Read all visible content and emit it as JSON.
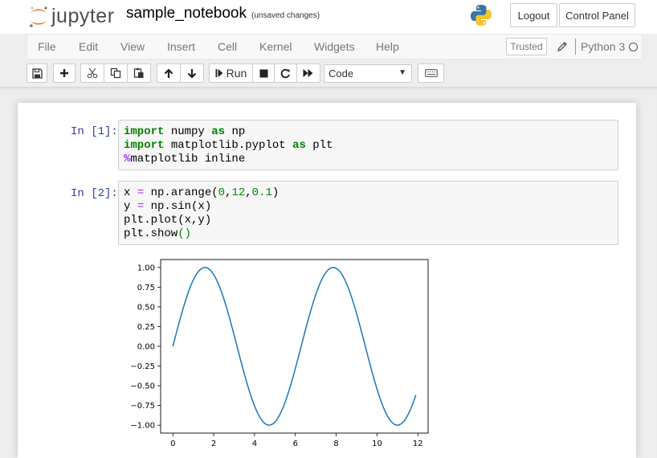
{
  "header": {
    "logo_text": "jupyter",
    "notebook_name": "sample_notebook",
    "save_status": "(unsaved changes)",
    "logout_label": "Logout",
    "control_panel_label": "Control Panel"
  },
  "menubar": {
    "items": [
      "File",
      "Edit",
      "View",
      "Insert",
      "Cell",
      "Kernel",
      "Widgets",
      "Help"
    ],
    "trusted_label": "Trusted",
    "kernel_name": "Python 3"
  },
  "toolbar": {
    "run_label": "Run",
    "cell_type": "Code",
    "icons": [
      "save-icon",
      "plus-icon",
      "cut-icon",
      "copy-icon",
      "paste-icon",
      "arrow-up-icon",
      "arrow-down-icon",
      "step-forward-icon",
      "stop-icon",
      "restart-icon",
      "fast-forward-icon",
      "keyboard-icon"
    ]
  },
  "cells": [
    {
      "prompt": "In [1]:",
      "lines": [
        [
          [
            "kw",
            "import"
          ],
          [
            "t",
            " numpy "
          ],
          [
            "kw",
            "as"
          ],
          [
            "t",
            " np"
          ]
        ],
        [
          [
            "kw",
            "import"
          ],
          [
            "t",
            " matplotlib.pyplot "
          ],
          [
            "kw",
            "as"
          ],
          [
            "t",
            " plt"
          ]
        ],
        [
          [
            "mg",
            "%"
          ],
          [
            "t",
            "matplotlib inline"
          ]
        ]
      ]
    },
    {
      "prompt": "In [2]:",
      "lines": [
        [
          [
            "t",
            "x "
          ],
          [
            "op",
            "="
          ],
          [
            "t",
            " np.arange("
          ],
          [
            "num",
            "0"
          ],
          [
            "t",
            ","
          ],
          [
            "num",
            "12"
          ],
          [
            "t",
            ","
          ],
          [
            "num",
            "0.1"
          ],
          [
            "t",
            ")"
          ]
        ],
        [
          [
            "t",
            "y "
          ],
          [
            "op",
            "="
          ],
          [
            "t",
            " np.sin(x)"
          ]
        ],
        [
          [
            "t",
            "plt.plot(x,y)"
          ]
        ],
        [
          [
            "t",
            "plt.show"
          ],
          [
            "paren",
            "()"
          ]
        ]
      ]
    }
  ],
  "chart_data": {
    "type": "line",
    "function": "sin",
    "x_start": 0,
    "x_stop": 12,
    "x_step": 0.1,
    "xlim": [
      -0.6,
      12.5
    ],
    "ylim": [
      -1.1,
      1.1
    ],
    "x_ticks": [
      "0",
      "2",
      "4",
      "6",
      "8",
      "10",
      "12"
    ],
    "y_ticks": [
      "1.00",
      "0.75",
      "0.50",
      "0.25",
      "0.00",
      "−0.25",
      "−0.50",
      "−0.75",
      "−1.00"
    ],
    "line_color": "#1f77b4",
    "grid": false
  }
}
